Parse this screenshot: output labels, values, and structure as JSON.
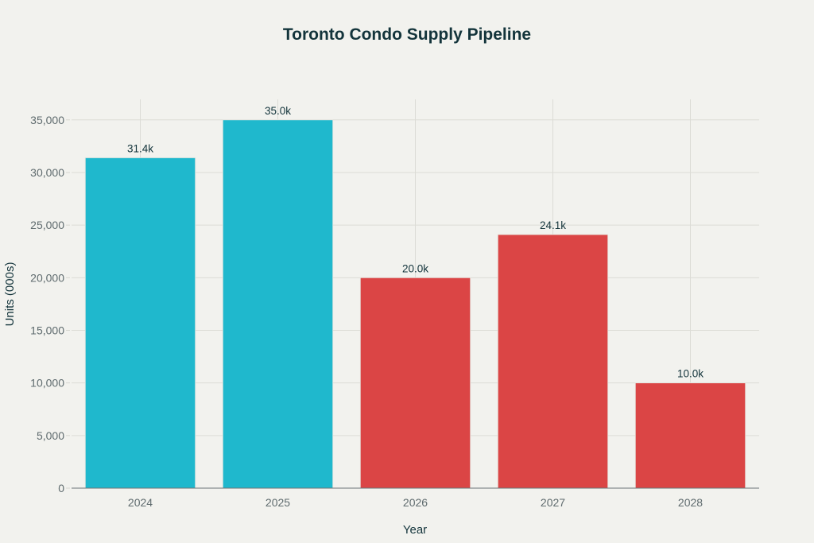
{
  "chart_data": {
    "type": "bar",
    "title": "Toronto Condo Supply Pipeline",
    "xlabel": "Year",
    "ylabel": "Units (000s)",
    "categories": [
      "2024",
      "2025",
      "2026",
      "2027",
      "2028"
    ],
    "values": [
      31400,
      35000,
      20000,
      24100,
      10000
    ],
    "data_labels": [
      "31.4k",
      "35.0k",
      "20.0k",
      "24.1k",
      "10.0k"
    ],
    "bar_colors": [
      "#1fb8cd",
      "#1fb8cd",
      "#db4545",
      "#db4545",
      "#db4545"
    ],
    "ylim": [
      0,
      36950
    ],
    "yticks": [
      0,
      5000,
      10000,
      15000,
      20000,
      25000,
      30000,
      35000
    ],
    "ytick_labels": [
      "0",
      "5,000",
      "10,000",
      "15,000",
      "20,000",
      "25,000",
      "30,000",
      "35,000"
    ],
    "grid": true,
    "legend": "none"
  }
}
